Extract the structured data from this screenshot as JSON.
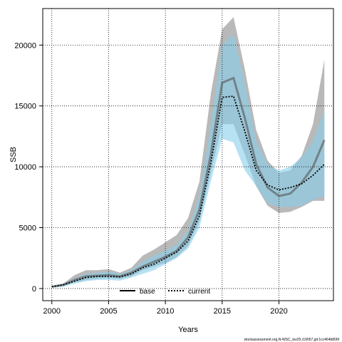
{
  "chart_data": {
    "type": "line",
    "xlabel": "Years",
    "ylabel": "SSB",
    "xlim": [
      1999.2,
      2024.8
    ],
    "ylim": [
      -1000,
      23000
    ],
    "xticks": [
      2000,
      2005,
      2010,
      2015,
      2020
    ],
    "yticks": [
      0,
      5000,
      10000,
      15000,
      20000
    ],
    "grid": true,
    "legend_position": "bottom-center",
    "watermark": "stockassessment.org,N-WSC_lez25,r19057,git:1cc464b806f",
    "x": [
      2000,
      2001,
      2002,
      2003,
      2004,
      2005,
      2006,
      2007,
      2008,
      2009,
      2010,
      2011,
      2012,
      2013,
      2014,
      2015,
      2016,
      2017,
      2018,
      2019,
      2020,
      2021,
      2022,
      2023,
      2024
    ],
    "series": [
      {
        "name": "base",
        "color": "#000000",
        "dash": "solid",
        "band_color": "#808080",
        "values": [
          150,
          300,
          700,
          1000,
          1050,
          1100,
          1000,
          1300,
          1800,
          2200,
          2600,
          3100,
          4200,
          6500,
          11000,
          16900,
          17300,
          14000,
          10200,
          8300,
          7600,
          7800,
          8700,
          10000,
          12200
        ],
        "lower": [
          80,
          200,
          500,
          700,
          800,
          850,
          800,
          1000,
          1500,
          1800,
          2100,
          2600,
          3500,
          5500,
          9500,
          13500,
          13500,
          11000,
          8400,
          6800,
          6200,
          6300,
          6700,
          7200,
          7200
        ],
        "upper": [
          200,
          400,
          1100,
          1500,
          1500,
          1600,
          1300,
          1700,
          2700,
          3200,
          3800,
          4400,
          5800,
          8800,
          16000,
          21300,
          22300,
          18000,
          13000,
          10500,
          9500,
          9700,
          10900,
          13500,
          18800
        ]
      },
      {
        "name": "current",
        "color": "#000000",
        "dash": "dotted",
        "band_color": "#87ceeb",
        "values": [
          150,
          300,
          600,
          900,
          1000,
          1000,
          950,
          1200,
          1700,
          2000,
          2500,
          3000,
          3900,
          6000,
          10300,
          15700,
          15800,
          12900,
          9700,
          8500,
          8100,
          8300,
          8600,
          9300,
          10200
        ],
        "lower": [
          70,
          150,
          400,
          600,
          700,
          700,
          650,
          900,
          1200,
          1500,
          2000,
          2500,
          3300,
          5000,
          8800,
          12300,
          12000,
          9700,
          8400,
          7000,
          6700,
          6700,
          6800,
          7300,
          7600
        ],
        "upper": [
          200,
          400,
          800,
          1200,
          1300,
          1400,
          1200,
          1500,
          2200,
          2700,
          3100,
          3600,
          4800,
          7600,
          13500,
          20000,
          20900,
          16800,
          12100,
          10200,
          9700,
          10000,
          10800,
          12100,
          14700
        ]
      }
    ]
  }
}
